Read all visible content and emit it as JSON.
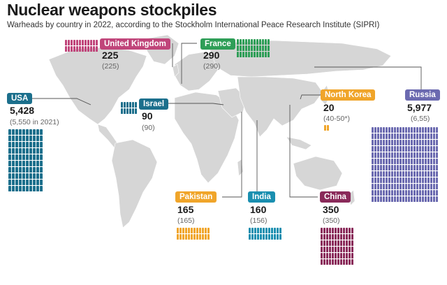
{
  "header": {
    "title": "Nuclear weapons stockpiles",
    "subtitle": "Warheads by country in 2022, according to the Stockholm International Peace Research Institute (SIPRI)"
  },
  "countries": {
    "usa": {
      "name": "USA",
      "value": "5,428",
      "prev": "(5,550 in 2021)",
      "color": "#1b6f8c"
    },
    "uk": {
      "name": "United Kingdom",
      "value": "225",
      "prev": "(225)",
      "color": "#c0457a"
    },
    "france": {
      "name": "France",
      "value": "290",
      "prev": "(290)",
      "color": "#2e9e57"
    },
    "israel": {
      "name": "Israel",
      "value": "90",
      "prev": "(90)",
      "color": "#1b6f8c"
    },
    "north_korea": {
      "name": "North Korea",
      "value": "20",
      "prev": "(40-50*)",
      "color": "#f0a52a"
    },
    "russia": {
      "name": "Russia",
      "value": "5,977",
      "prev": "(6,55)",
      "color": "#6b6ab0"
    },
    "pakistan": {
      "name": "Pakistan",
      "value": "165",
      "prev": "(165)",
      "color": "#f0a52a"
    },
    "india": {
      "name": "India",
      "value": "160",
      "prev": "(156)",
      "color": "#1a8fb0"
    },
    "china": {
      "name": "China",
      "value": "350",
      "prev": "(350)",
      "color": "#8a2a5a"
    }
  },
  "colors": {
    "land": "#d6d6d6",
    "leader_line": "#555555"
  }
}
